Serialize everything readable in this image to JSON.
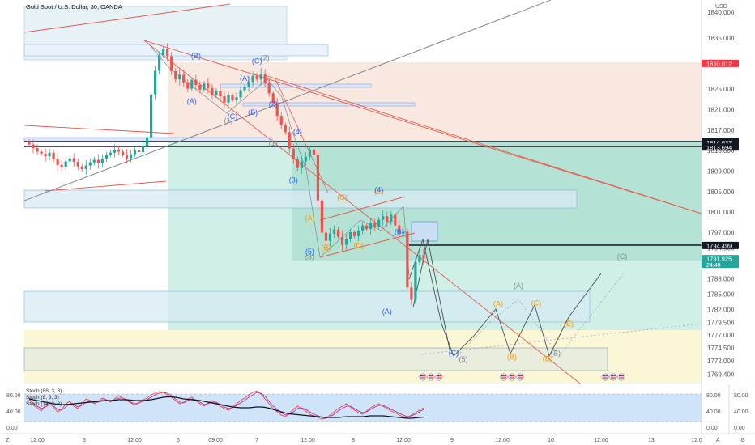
{
  "header": {
    "title": "Gold Spot / U.S. Dollar, 30, OANDA",
    "currency": "USD"
  },
  "chart_data": {
    "type": "candlestick",
    "title": "Gold Spot / U.S. Dollar, 30, OANDA",
    "ylim": [
      1768.5,
      1840.5
    ],
    "y_ticks": [
      "1840.000",
      "1835.000",
      "1830.000",
      "1825.000",
      "1821.000",
      "1817.000",
      "1813.000",
      "1809.000",
      "1805.000",
      "1801.000",
      "1797.000",
      "1794.000",
      "1788.000",
      "1785.000",
      "1782.000",
      "1779.500",
      "1777.000",
      "1774.500",
      "1772.000",
      "1769.400"
    ],
    "x_ticks": [
      "12:00",
      "3",
      "12:00",
      "6",
      "09:00",
      "7",
      "12:00",
      "8",
      "12:00",
      "9",
      "12:00",
      "10",
      "12:00",
      "13",
      "12:0"
    ],
    "price_tags": [
      {
        "label": "1830.012",
        "value": 1830.012,
        "color": "#f23645"
      },
      {
        "label": "1814.785",
        "value": 1814.785,
        "color": "#131722"
      },
      {
        "label": "1814.632",
        "value": 1814.632,
        "color": "#131722"
      },
      {
        "label": "1813.694",
        "value": 1813.694,
        "color": "#131722"
      },
      {
        "label": "1794.499",
        "value": 1794.499,
        "color": "#131722"
      },
      {
        "label": "1791.925",
        "value": 1791.925,
        "color": "#26a69a",
        "countdown": "24:48"
      }
    ],
    "closes": [
      1814.2,
      1813.5,
      1812.8,
      1812.4,
      1811.9,
      1812.6,
      1811.3,
      1810.2,
      1809.8,
      1810.9,
      1811.5,
      1810.8,
      1809.9,
      1809.4,
      1810.1,
      1810.7,
      1811.2,
      1810.6,
      1811.4,
      1812.1,
      1812.6,
      1813.2,
      1812.8,
      1812.2,
      1811.5,
      1812.3,
      1813.0,
      1812.7,
      1813.8,
      1815.6,
      1824.0,
      1828.6,
      1831.6,
      1832.9,
      1831.4,
      1828.5,
      1826.9,
      1827.8,
      1826.3,
      1825.1,
      1826.8,
      1825.8,
      1824.9,
      1826.1,
      1825.2,
      1823.9,
      1824.6,
      1823.6,
      1822.4,
      1823.8,
      1822.9,
      1823.4,
      1824.8,
      1825.5,
      1826.4,
      1827.6,
      1826.9,
      1828.0,
      1826.2,
      1824.2,
      1822.3,
      1819.8,
      1818.0,
      1816.6,
      1813.4,
      1811.3,
      1809.6,
      1810.9,
      1811.8,
      1813.2,
      1812.1,
      1803.3,
      1797.0,
      1795.4,
      1796.8,
      1797.6,
      1796.2,
      1794.6,
      1795.8,
      1797.1,
      1796.3,
      1797.4,
      1798.4,
      1797.7,
      1798.9,
      1798.2,
      1799.5,
      1800.2,
      1799.1,
      1800.5,
      1798.4,
      1796.8,
      1797.2,
      1786.3,
      1783.9,
      1791.2,
      1792.6,
      1791.925
    ],
    "waves": [
      {
        "text": "(B)",
        "price": 1831.0,
        "bar": 41,
        "color": "#2962ff"
      },
      {
        "text": "(A)",
        "price": 1822.2,
        "bar": 40,
        "color": "#2962ff"
      },
      {
        "text": "(A)",
        "price": 1826.6,
        "bar": 53,
        "color": "#2962ff"
      },
      {
        "text": "(C)",
        "price": 1830.0,
        "bar": 56,
        "color": "#2962ff"
      },
      {
        "text": "(C)",
        "price": 1819.2,
        "bar": 50,
        "color": "#2962ff"
      },
      {
        "text": "(B)",
        "price": 1820.0,
        "bar": 55,
        "color": "#2962ff"
      },
      {
        "text": "(2)",
        "price": 1830.6,
        "bar": 58,
        "color": "#7e8b9e"
      },
      {
        "text": "(2)",
        "price": 1821.6,
        "bar": 60,
        "color": "#2962ff"
      },
      {
        "text": "(1)",
        "price": 1818.4,
        "bar": 49,
        "color": "#7e8b9e"
      },
      {
        "text": "(1)",
        "price": 1814.0,
        "bar": 60,
        "color": "#7e8b9e"
      },
      {
        "text": "(4)",
        "price": 1816.2,
        "bar": 66,
        "color": "#2962ff"
      },
      {
        "text": "(3)",
        "price": 1806.8,
        "bar": 65,
        "color": "#2962ff"
      },
      {
        "text": "(A)",
        "price": 1799.4,
        "bar": 69,
        "color": "#ff9800"
      },
      {
        "text": "(C)",
        "price": 1803.4,
        "bar": 77,
        "color": "#ff9800"
      },
      {
        "text": "(E)",
        "price": 1804.6,
        "bar": 86,
        "color": "#ff9800"
      },
      {
        "text": "(B)",
        "price": 1793.6,
        "bar": 73,
        "color": "#ff9800"
      },
      {
        "text": "(D)",
        "price": 1794.0,
        "bar": 81,
        "color": "#ff9800"
      },
      {
        "text": "(4)",
        "price": 1804.9,
        "bar": 86,
        "color": "#2962ff"
      },
      {
        "text": "(5)",
        "price": 1792.8,
        "bar": 69,
        "color": "#2962ff"
      },
      {
        "text": "(3)",
        "price": 1791.8,
        "bar": 69,
        "color": "#7e8b9e"
      },
      {
        "text": "(B)",
        "price": 1796.7,
        "bar": 91,
        "color": "#2962ff"
      },
      {
        "text": "(A)",
        "price": 1781.1,
        "bar": 88,
        "color": "#2962ff"
      }
    ],
    "projection_labels": [
      {
        "text": "(C)",
        "price": 1773.1,
        "x": 560,
        "color": "#2962ff"
      },
      {
        "text": "(5)",
        "price": 1771.8,
        "x": 572,
        "color": "#7e8b9e"
      },
      {
        "text": "(A)",
        "price": 1782.6,
        "x": 615,
        "color": "#ff9800"
      },
      {
        "text": "(A)",
        "price": 1786.2,
        "x": 640,
        "color": "#7e8b9e"
      },
      {
        "text": "(B)",
        "price": 1772.3,
        "x": 632,
        "color": "#ff9800"
      },
      {
        "text": "(C)",
        "price": 1782.8,
        "x": 662,
        "color": "#ff9800"
      },
      {
        "text": "(D)",
        "price": 1771.9,
        "x": 676,
        "color": "#ff9800"
      },
      {
        "text": "(B)",
        "price": 1773.0,
        "x": 686,
        "color": "#7e8b9e"
      },
      {
        "text": "(E)",
        "price": 1778.8,
        "x": 702,
        "color": "#ff9800"
      },
      {
        "text": "(C)",
        "price": 1791.9,
        "x": 768,
        "color": "#7e8b9e"
      }
    ],
    "stoch": {
      "legend": [
        "Stoch (88, 3, 3)",
        "Stoch (8, 3, 3)",
        "Stoch (14, 3, 3)"
      ],
      "ylim": [
        0,
        100
      ],
      "left_ticks": [
        "80.00",
        "40.00",
        "0.00"
      ],
      "right_ticks": [
        "80.00",
        "40.00",
        "0.00"
      ],
      "k": [
        72,
        55,
        48,
        40,
        56,
        62,
        49,
        38,
        44,
        58,
        64,
        52,
        46,
        60,
        70,
        66,
        58,
        64,
        72,
        68,
        62,
        70,
        78,
        72,
        66,
        60,
        54,
        62,
        68,
        72,
        80,
        84,
        88,
        86,
        80,
        74,
        66,
        58,
        62,
        70,
        74,
        66,
        58,
        52,
        60,
        66,
        60,
        52,
        46,
        42,
        50,
        58,
        66,
        72,
        80,
        86,
        90,
        82,
        70,
        58,
        46,
        38,
        30,
        26,
        34,
        44,
        52,
        46,
        40,
        32,
        28,
        24,
        20,
        22,
        30,
        38,
        46,
        52,
        58,
        50,
        42,
        36,
        32,
        40,
        48,
        54,
        58,
        52,
        46,
        40,
        36,
        30,
        26,
        24,
        30,
        36,
        42,
        48
      ],
      "d": [
        68,
        60,
        52,
        46,
        50,
        56,
        52,
        44,
        42,
        50,
        58,
        56,
        50,
        54,
        62,
        64,
        60,
        62,
        68,
        68,
        64,
        66,
        72,
        72,
        68,
        62,
        58,
        60,
        64,
        68,
        74,
        80,
        84,
        86,
        84,
        78,
        70,
        62,
        60,
        66,
        70,
        68,
        62,
        56,
        58,
        62,
        62,
        56,
        50,
        46,
        48,
        54,
        60,
        66,
        74,
        80,
        86,
        84,
        76,
        64,
        52,
        44,
        36,
        30,
        32,
        38,
        46,
        48,
        44,
        38,
        32,
        28,
        24,
        22,
        26,
        32,
        40,
        46,
        52,
        52,
        46,
        40,
        36,
        38,
        44,
        50,
        54,
        54,
        50,
        44,
        40,
        34,
        30,
        26,
        28,
        32,
        38,
        44
      ],
      "slow": [
        70,
        68,
        66,
        64,
        62,
        60,
        58,
        57,
        56,
        56,
        57,
        58,
        59,
        60,
        61,
        62,
        63,
        64,
        65,
        66,
        66,
        67,
        68,
        68,
        68,
        67,
        66,
        66,
        66,
        67,
        68,
        70,
        72,
        74,
        75,
        75,
        74,
        72,
        70,
        69,
        68,
        67,
        66,
        64,
        62,
        60,
        58,
        56,
        54,
        52,
        50,
        49,
        48,
        48,
        48,
        49,
        50,
        50,
        49,
        47,
        44,
        41,
        38,
        35,
        33,
        32,
        31,
        30,
        29,
        28,
        27,
        26,
        25,
        24,
        24,
        24,
        24,
        25,
        26,
        26,
        26,
        26,
        26,
        27,
        28,
        28,
        28,
        28,
        27,
        26,
        25,
        24,
        23,
        22,
        22,
        23,
        24,
        25
      ]
    }
  }
}
